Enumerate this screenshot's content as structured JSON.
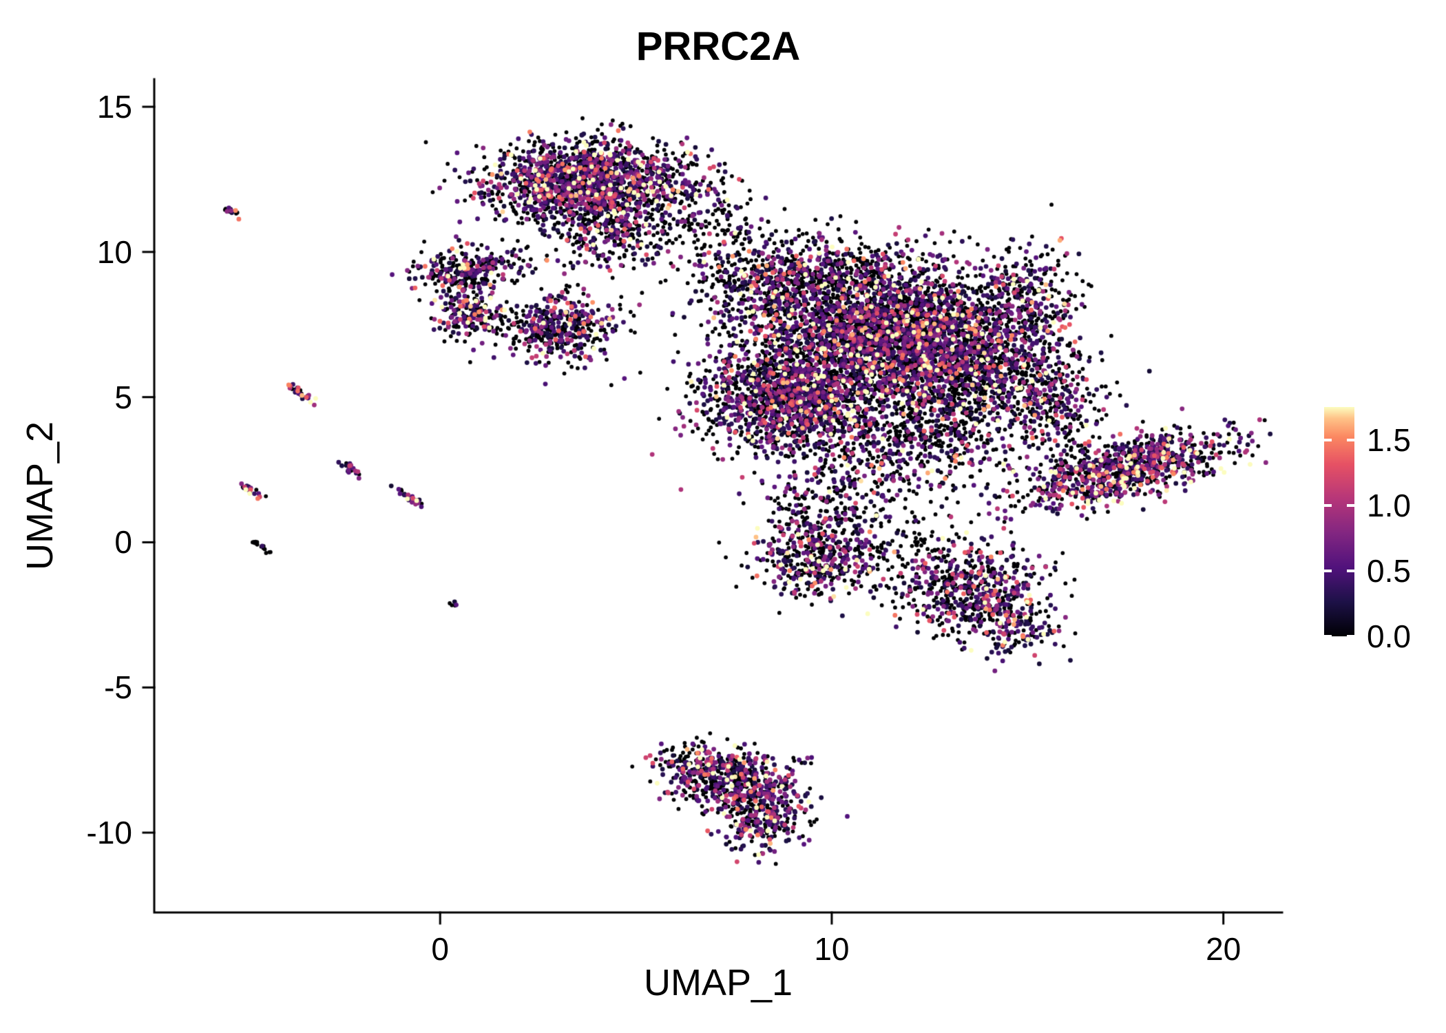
{
  "chart_data": {
    "type": "scatter",
    "title": "PRRC2A",
    "xlabel": "UMAP_1",
    "ylabel": "UMAP_2",
    "xlim": [
      -7.3,
      21.5
    ],
    "ylim": [
      -12.75,
      15.95
    ],
    "x_ticks": [
      0,
      10,
      20
    ],
    "x_tick_labels": [
      "0",
      "10",
      "20"
    ],
    "y_ticks": [
      -10,
      -5,
      0,
      5,
      10,
      15
    ],
    "y_tick_labels": [
      "-10",
      "-5",
      "0",
      "5",
      "10",
      "15"
    ],
    "grid": false,
    "legend_position": "right",
    "colorbar": {
      "range": [
        0,
        1.75
      ],
      "ticks": [
        0,
        0.5,
        1.0,
        1.5
      ],
      "tick_labels": [
        "0.0",
        "0.5",
        "1.0",
        "1.5"
      ]
    },
    "colormap": {
      "name": "magma",
      "stops": [
        [
          0.0,
          "#000004"
        ],
        [
          0.15,
          "#1d1147"
        ],
        [
          0.3,
          "#51127c"
        ],
        [
          0.45,
          "#822681"
        ],
        [
          0.6,
          "#b63679"
        ],
        [
          0.75,
          "#e65164"
        ],
        [
          0.87,
          "#fb8861"
        ],
        [
          0.95,
          "#fec287"
        ],
        [
          1.0,
          "#fcfdbf"
        ]
      ]
    },
    "point_radius": 3.4,
    "seed": 42,
    "clusters": [
      {
        "name": "satellite-a",
        "cx": -5.35,
        "cy": 11.4,
        "sx": 0.16,
        "sy": 0.05,
        "rot": -40,
        "n": 14,
        "p0": 0.25,
        "mean": 0.55
      },
      {
        "name": "streak-b",
        "cx": -3.55,
        "cy": 5.15,
        "sx": 0.28,
        "sy": 0.06,
        "rot": -42,
        "n": 30,
        "p0": 0.3,
        "mean": 0.6
      },
      {
        "name": "streak-c",
        "cx": -4.85,
        "cy": 1.8,
        "sx": 0.22,
        "sy": 0.06,
        "rot": -42,
        "n": 24,
        "p0": 0.3,
        "mean": 0.7
      },
      {
        "name": "streak-d",
        "cx": -2.3,
        "cy": 2.55,
        "sx": 0.2,
        "sy": 0.06,
        "rot": -42,
        "n": 20,
        "p0": 0.3,
        "mean": 0.6
      },
      {
        "name": "streak-e",
        "cx": -0.75,
        "cy": 1.5,
        "sx": 0.26,
        "sy": 0.06,
        "rot": -42,
        "n": 26,
        "p0": 0.3,
        "mean": 0.7
      },
      {
        "name": "streak-f",
        "cx": -4.6,
        "cy": -0.1,
        "sx": 0.18,
        "sy": 0.05,
        "rot": -40,
        "n": 16,
        "p0": 0.85,
        "mean": 0.4
      },
      {
        "name": "dot-g",
        "cx": 0.3,
        "cy": -2.1,
        "sx": 0.06,
        "sy": 0.05,
        "rot": 0,
        "n": 5,
        "p0": 0.5,
        "mean": 0.5
      },
      {
        "name": "top-main",
        "cx": 3.7,
        "cy": 12.4,
        "sx": 1.25,
        "sy": 0.7,
        "rot": 0,
        "n": 1500,
        "p0": 0.45,
        "mean": 0.55
      },
      {
        "name": "top-lower",
        "cx": 4.3,
        "cy": 10.8,
        "sx": 0.9,
        "sy": 0.7,
        "rot": 0,
        "n": 330,
        "p0": 0.6,
        "mean": 0.5
      },
      {
        "name": "top-right-tail",
        "cx": 6.2,
        "cy": 11.9,
        "sx": 0.7,
        "sy": 0.9,
        "rot": 0,
        "n": 130,
        "p0": 0.65,
        "mean": 0.5
      },
      {
        "name": "bridge",
        "cx": 7.3,
        "cy": 10.6,
        "sx": 0.8,
        "sy": 0.6,
        "rot": 0,
        "n": 80,
        "p0": 0.75,
        "mean": 0.4
      },
      {
        "name": "blob-i",
        "cx": 0.55,
        "cy": 9.3,
        "sx": 0.55,
        "sy": 0.42,
        "rot": 0,
        "n": 280,
        "p0": 0.55,
        "mean": 0.5
      },
      {
        "name": "blob-i2",
        "cx": 1.8,
        "cy": 9.6,
        "sx": 0.45,
        "sy": 0.3,
        "rot": 0,
        "n": 40,
        "p0": 0.6,
        "mean": 0.5
      },
      {
        "name": "blob-j",
        "cx": 0.8,
        "cy": 7.8,
        "sx": 0.42,
        "sy": 0.38,
        "rot": 0,
        "n": 170,
        "p0": 0.5,
        "mean": 0.6
      },
      {
        "name": "blob-k",
        "cx": 3.1,
        "cy": 7.4,
        "sx": 0.75,
        "sy": 0.55,
        "rot": 0,
        "n": 430,
        "p0": 0.5,
        "mean": 0.55
      },
      {
        "name": "core-1",
        "cx": 11.3,
        "cy": 7.2,
        "sx": 1.6,
        "sy": 1.15,
        "rot": 0,
        "n": 2600,
        "p0": 0.52,
        "mean": 0.55
      },
      {
        "name": "core-2",
        "cx": 9.0,
        "cy": 5.0,
        "sx": 1.25,
        "sy": 1.0,
        "rot": 0,
        "n": 1500,
        "p0": 0.5,
        "mean": 0.55
      },
      {
        "name": "core-3",
        "cx": 13.2,
        "cy": 6.0,
        "sx": 1.15,
        "sy": 1.25,
        "rot": 0,
        "n": 1100,
        "p0": 0.58,
        "mean": 0.55
      },
      {
        "name": "core-4",
        "cx": 8.3,
        "cy": 8.8,
        "sx": 1.0,
        "sy": 0.85,
        "rot": 0,
        "n": 480,
        "p0": 0.6,
        "mean": 0.5
      },
      {
        "name": "core-5",
        "cx": 10.3,
        "cy": 9.3,
        "sx": 1.1,
        "sy": 0.65,
        "rot": 0,
        "n": 380,
        "p0": 0.6,
        "mean": 0.5
      },
      {
        "name": "core-6",
        "cx": 14.9,
        "cy": 8.3,
        "sx": 0.75,
        "sy": 1.0,
        "rot": 0,
        "n": 330,
        "p0": 0.55,
        "mean": 0.55
      },
      {
        "name": "core-7",
        "cx": 15.6,
        "cy": 5.3,
        "sx": 0.7,
        "sy": 1.0,
        "rot": 0,
        "n": 280,
        "p0": 0.6,
        "mean": 0.5
      },
      {
        "name": "core-8",
        "cx": 12.2,
        "cy": 3.3,
        "sx": 1.3,
        "sy": 0.9,
        "rot": 0,
        "n": 420,
        "p0": 0.62,
        "mean": 0.5
      },
      {
        "name": "core-9",
        "cx": 10.1,
        "cy": 1.6,
        "sx": 0.95,
        "sy": 0.8,
        "rot": 0,
        "n": 190,
        "p0": 0.7,
        "mean": 0.45
      },
      {
        "name": "wing",
        "cx": 17.5,
        "cy": 2.55,
        "sx": 1.45,
        "sy": 0.5,
        "rot": 18,
        "n": 950,
        "p0": 0.42,
        "mean": 0.6
      },
      {
        "name": "wing-bridge",
        "cx": 15.7,
        "cy": 4.3,
        "sx": 0.5,
        "sy": 0.45,
        "rot": 0,
        "n": 70,
        "p0": 0.6,
        "mean": 0.5
      },
      {
        "name": "blob-n",
        "cx": 9.6,
        "cy": -0.4,
        "sx": 0.8,
        "sy": 0.75,
        "rot": 0,
        "n": 460,
        "p0": 0.48,
        "mean": 0.55
      },
      {
        "name": "mid-sparse",
        "cx": 11.7,
        "cy": -0.5,
        "sx": 1.0,
        "sy": 0.6,
        "rot": 0,
        "n": 110,
        "p0": 0.7,
        "mean": 0.45
      },
      {
        "name": "blob-o",
        "cx": 13.6,
        "cy": -1.6,
        "sx": 0.95,
        "sy": 0.8,
        "rot": 0,
        "n": 560,
        "p0": 0.52,
        "mean": 0.55
      },
      {
        "name": "blob-o-tail",
        "cx": 14.7,
        "cy": -3.0,
        "sx": 0.5,
        "sy": 0.5,
        "rot": -30,
        "n": 140,
        "p0": 0.5,
        "mean": 0.55
      },
      {
        "name": "south-1",
        "cx": 6.9,
        "cy": -7.9,
        "sx": 0.75,
        "sy": 0.5,
        "rot": -15,
        "n": 300,
        "p0": 0.48,
        "mean": 0.55
      },
      {
        "name": "south-2",
        "cx": 8.2,
        "cy": -9.2,
        "sx": 0.6,
        "sy": 0.7,
        "rot": 0,
        "n": 330,
        "p0": 0.48,
        "mean": 0.55
      },
      {
        "name": "south-3",
        "cx": 7.7,
        "cy": -8.4,
        "sx": 0.85,
        "sy": 0.55,
        "rot": -20,
        "n": 230,
        "p0": 0.5,
        "mean": 0.55
      },
      {
        "name": "south-dot",
        "cx": 9.35,
        "cy": -7.5,
        "sx": 0.1,
        "sy": 0.08,
        "rot": 0,
        "n": 6,
        "p0": 0.6,
        "mean": 0.4
      }
    ]
  }
}
